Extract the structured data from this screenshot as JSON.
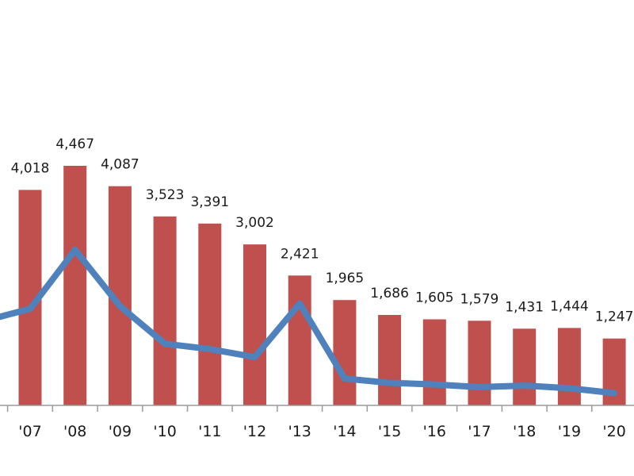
{
  "chart_data": {
    "type": "bar",
    "categories": [
      "'07",
      "'08",
      "'09",
      "'10",
      "'11",
      "'12",
      "'13",
      "'14",
      "'15",
      "'16",
      "'17",
      "'18",
      "'19",
      "'20"
    ],
    "series": [
      {
        "type": "bar",
        "values": [
          4018,
          4467,
          4087,
          3523,
          3391,
          3002,
          2421,
          1965,
          1686,
          1605,
          1579,
          1431,
          1444,
          1247
        ],
        "data_labels": [
          "4,018",
          "4,467",
          "4,087",
          "3,523",
          "3,391",
          "3,002",
          "2,421",
          "1,965",
          "1,686",
          "1,605",
          "1,579",
          "1,431",
          "1,444",
          "1,247"
        ],
        "color": "#c0504d"
      },
      {
        "type": "line",
        "values": [
          1800,
          2900,
          1850,
          1150,
          1050,
          900,
          1900,
          500,
          420,
          390,
          340,
          370,
          320,
          230
        ],
        "color": "#4f81bd"
      }
    ],
    "ylim": [
      0,
      5000
    ],
    "grid": false,
    "legend": "none"
  }
}
